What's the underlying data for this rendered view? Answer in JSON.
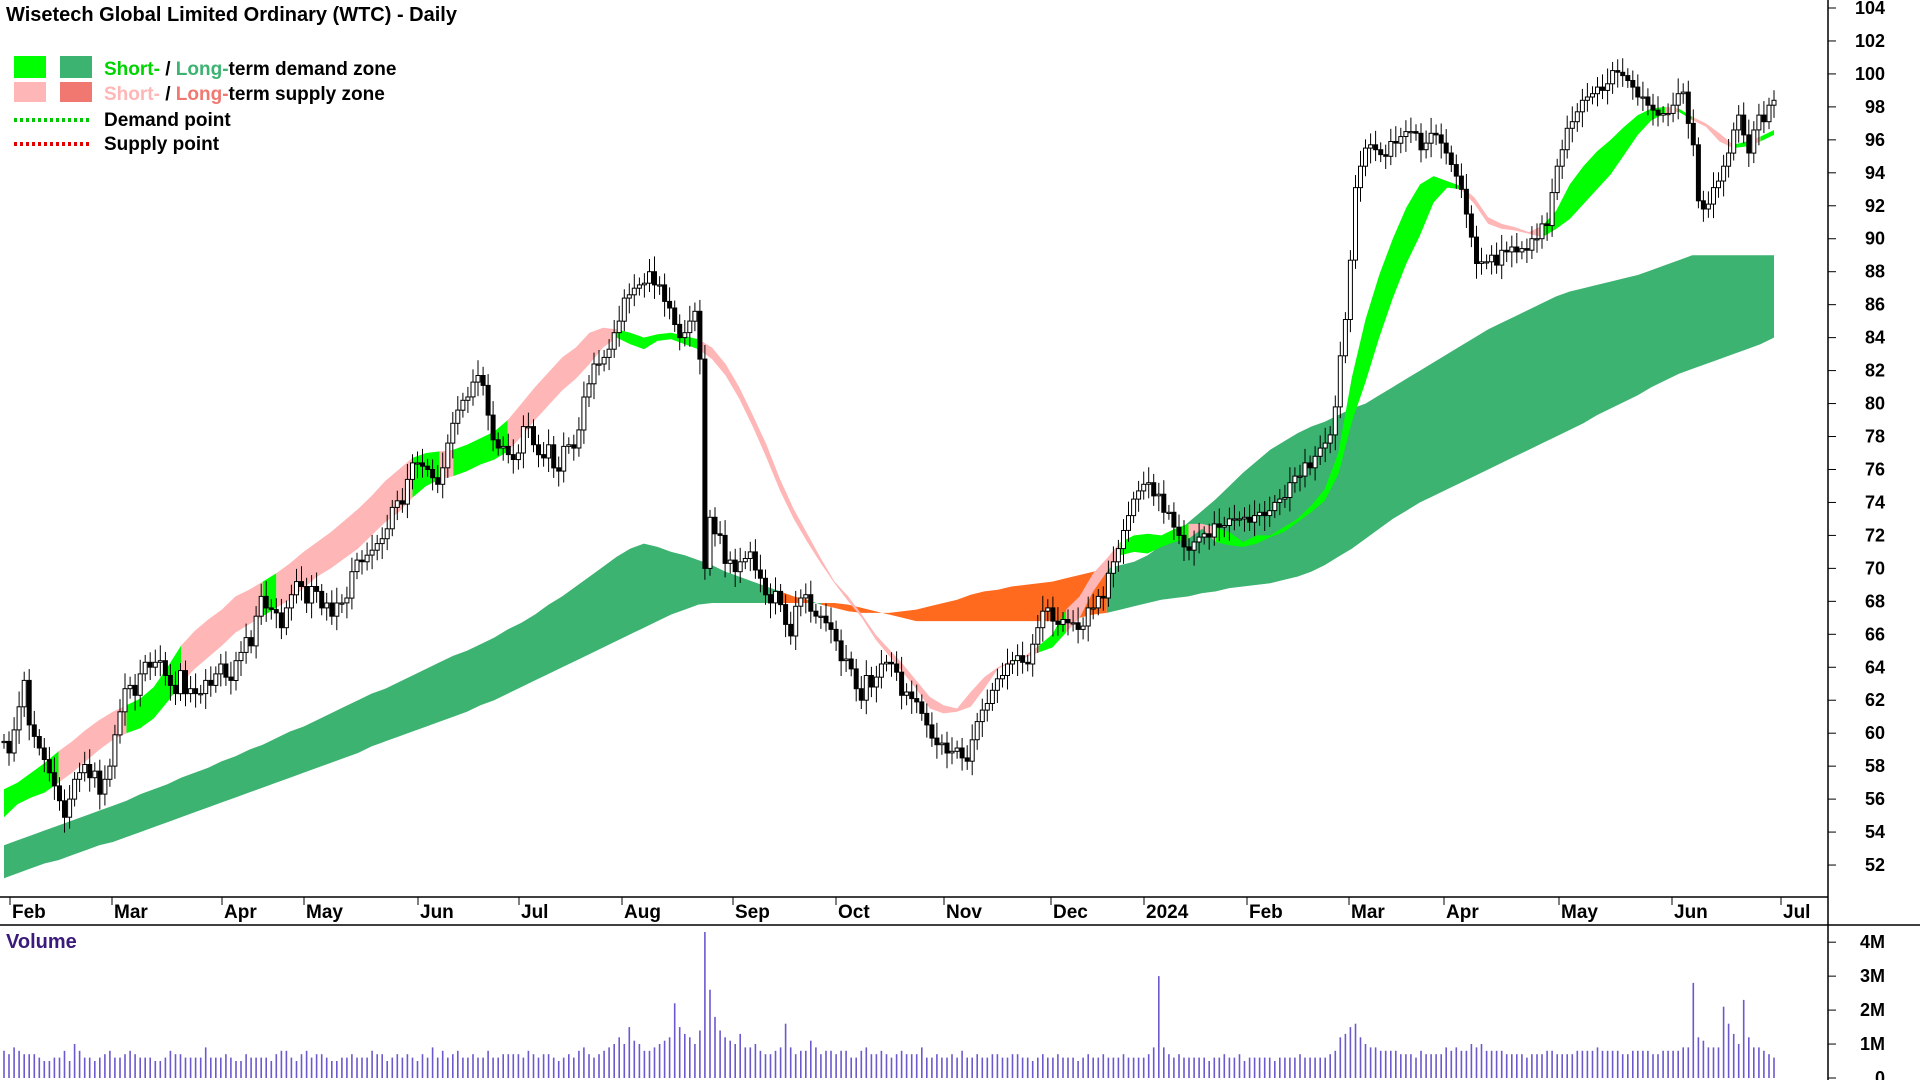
{
  "chart_data": {
    "type": "candlestick",
    "title": "Wisetech Global Limited Ordinary (WTC) - Daily",
    "legend": {
      "demand_zone": {
        "short": "Short-",
        "sep": " / ",
        "long": "Long-",
        "rest": "term demand zone"
      },
      "supply_zone": {
        "short": "Short-",
        "sep": " / ",
        "long": "Long-",
        "rest": "term supply zone"
      },
      "demand_point": "Demand point",
      "supply_point": "Supply point"
    },
    "colors": {
      "short_demand": "#00ff00",
      "long_demand": "#3cb371",
      "short_supply": "#ffb6b6",
      "long_supply": "#f07870",
      "band_supply": "#ff6a1e",
      "demand_point": "#00c800",
      "supply_point": "#e00000",
      "volume": "#6a5acd",
      "candle": "#000000"
    },
    "y_axis": {
      "ylim": [
        50,
        104
      ],
      "ticks": [
        52,
        54,
        56,
        58,
        60,
        62,
        64,
        66,
        68,
        70,
        72,
        74,
        76,
        78,
        80,
        82,
        84,
        86,
        88,
        90,
        92,
        94,
        96,
        98,
        100,
        102,
        104
      ]
    },
    "x_axis": {
      "labels": [
        "Feb",
        "Mar",
        "Apr",
        "May",
        "Jun",
        "Jul",
        "Aug",
        "Sep",
        "Oct",
        "Nov",
        "Dec",
        "2024",
        "Feb",
        "Mar",
        "Apr",
        "May",
        "Jun",
        "Jul"
      ]
    },
    "close": [
      59.5,
      58.8,
      60.2,
      61.6,
      63.2,
      60.5,
      59.8,
      59.1,
      58.4,
      57.6,
      56.8,
      55.9,
      54.9,
      56.0,
      57.2,
      57.6,
      58.1,
      57.3,
      57.7,
      56.3,
      57.2,
      58.0,
      59.9,
      61.3,
      62.7,
      62.9,
      62.3,
      63.6,
      64.3,
      64.0,
      64.3,
      64.4,
      63.5,
      62.9,
      62.4,
      63.8,
      62.4,
      62.7,
      62.4,
      62.4,
      63.2,
      62.9,
      63.6,
      64.2,
      63.4,
      63.2,
      64.4,
      64.9,
      65.8,
      65.3,
      67.1,
      68.3,
      67.6,
      67.5,
      67.3,
      66.4,
      67.6,
      68.4,
      69.2,
      68.9,
      67.9,
      68.9,
      68.6,
      67.6,
      67.9,
      67.1,
      67.9,
      67.9,
      68.2,
      69.8,
      70.5,
      70.4,
      70.8,
      71.1,
      71.5,
      71.8,
      72.4,
      73.7,
      74.1,
      73.9,
      75.4,
      76.4,
      76.4,
      76.2,
      76.0,
      75.5,
      75.1,
      76.1,
      77.6,
      78.8,
      79.6,
      80.2,
      80.4,
      81.3,
      81.7,
      81.1,
      79.3,
      77.8,
      77.3,
      77.4,
      76.9,
      76.6,
      77.0,
      78.6,
      78.6,
      77.5,
      76.9,
      76.7,
      77.5,
      76.1,
      75.9,
      77.4,
      77.5,
      77.3,
      78.4,
      80.4,
      81.2,
      82.4,
      82.4,
      82.8,
      83.3,
      84.3,
      85.0,
      86.4,
      86.6,
      87.0,
      87.2,
      87.3,
      88.0,
      87.2,
      87.2,
      86.2,
      85.8,
      84.8,
      84.0,
      84.3,
      85.0,
      85.6,
      82.7,
      70.0,
      73.1,
      72.1,
      72.0,
      70.3,
      70.5,
      69.8,
      70.4,
      70.6,
      71.0,
      69.9,
      69.4,
      68.4,
      67.9,
      68.6,
      67.8,
      66.6,
      65.9,
      67.7,
      68.2,
      68.4,
      67.4,
      67.1,
      67.1,
      66.7,
      66.3,
      65.6,
      64.4,
      64.5,
      63.9,
      62.7,
      62.0,
      63.5,
      62.8,
      63.4,
      64.2,
      64.3,
      64.2,
      63.7,
      62.3,
      62.5,
      62.1,
      61.9,
      61.2,
      60.5,
      59.7,
      59.3,
      59.4,
      58.8,
      58.9,
      59.1,
      58.5,
      58.3,
      59.6,
      60.7,
      61.4,
      61.8,
      62.6,
      63.3,
      63.5,
      64.2,
      64.4,
      64.7,
      64.3,
      64.2,
      65.4,
      66.4,
      67.4,
      67.6,
      66.8,
      66.6,
      66.9,
      66.7,
      66.7,
      66.3,
      66.5,
      67.6,
      67.6,
      68.3,
      68.2,
      69.7,
      70.4,
      71.2,
      72.3,
      73.2,
      74.2,
      74.7,
      75.1,
      75.2,
      74.4,
      74.5,
      73.4,
      73.4,
      72.5,
      72.0,
      71.3,
      71.1,
      71.6,
      71.9,
      72.1,
      71.9,
      72.7,
      72.5,
      72.6,
      73.0,
      73.0,
      73.0,
      73.1,
      72.8,
      73.2,
      73.4,
      73.2,
      73.5,
      74.0,
      74.2,
      74.3,
      75.2,
      75.6,
      75.6,
      76.4,
      76.1,
      76.8,
      77.3,
      77.6,
      78.1,
      79.8,
      82.9,
      85.1,
      88.7,
      93.1,
      94.4,
      95.5,
      95.7,
      95.4,
      95.1,
      95.0,
      95.9,
      95.8,
      96.2,
      96.5,
      96.5,
      96.4,
      95.4,
      95.8,
      96.4,
      96.3,
      95.8,
      95.2,
      94.5,
      93.8,
      93.0,
      91.5,
      90.1,
      88.5,
      88.6,
      88.6,
      89.0,
      88.4,
      89.3,
      89.2,
      89.5,
      89.2,
      89.4,
      89.3,
      90.0,
      90.0,
      90.9,
      90.8,
      92.8,
      94.4,
      95.4,
      96.7,
      97.1,
      97.7,
      98.4,
      98.6,
      98.8,
      99.2,
      99.0,
      99.4,
      100.2,
      100.1,
      99.9,
      99.6,
      99.2,
      98.6,
      98.6,
      98.1,
      97.8,
      97.5,
      97.6,
      97.6,
      98.1,
      98.8,
      98.9,
      97.0,
      95.7,
      92.3,
      91.8,
      92.1,
      93.1,
      93.5,
      94.4,
      95.2,
      96.6,
      97.5,
      96.3,
      95.2,
      96.6,
      97.5,
      97.1,
      98.1,
      98.4
    ],
    "zones": {
      "short_top": [
        56.6,
        57.0,
        57.6,
        58.2,
        58.9,
        59.5,
        60.2,
        60.8,
        61.3,
        61.7,
        62.1,
        62.8,
        64.0,
        65.3,
        66.2,
        66.9,
        67.5,
        68.3,
        68.7,
        69.2,
        69.7,
        70.3,
        71.0,
        71.6,
        72.2,
        72.9,
        73.6,
        74.4,
        75.3,
        76.0,
        76.7,
        77.0,
        77.1,
        77.2,
        77.5,
        77.9,
        78.3,
        79.0,
        80.0,
        81.0,
        81.9,
        82.8,
        83.4,
        84.3,
        84.6,
        84.5,
        84.3,
        84.0,
        84.2,
        84.3,
        84.1,
        83.9,
        83.4,
        82.4,
        81.0,
        79.3,
        77.5,
        75.4,
        73.6,
        72.1,
        70.6,
        69.2,
        68.3,
        67.2,
        66.0,
        65.1,
        64.2,
        63.2,
        62.2,
        61.7,
        61.5,
        62.5,
        63.4,
        64.0,
        64.4,
        64.7,
        65.3,
        66.0,
        67.5,
        68.3,
        69.7,
        70.6,
        71.6,
        72.0,
        72.1,
        72.0,
        72.4,
        72.7,
        72.7,
        72.5,
        72.2,
        71.6,
        72.0,
        72.0,
        72.5,
        73.0,
        73.8,
        74.8,
        77.0,
        81.6,
        85.1,
        87.8,
        90.0,
        91.9,
        93.3,
        93.8,
        93.5,
        93.2,
        92.5,
        91.3,
        90.9,
        90.7,
        90.4,
        90.8,
        91.7,
        93.3,
        94.4,
        95.3,
        96.0,
        96.8,
        97.5,
        97.9,
        98.0,
        97.9,
        97.4,
        97.0,
        96.4,
        95.7,
        95.9,
        96.2,
        96.6
      ],
      "short_bot": [
        54.9,
        55.7,
        56.1,
        56.4,
        57.0,
        57.6,
        58.3,
        59.0,
        59.6,
        60.0,
        60.3,
        60.9,
        61.9,
        63.0,
        63.9,
        64.6,
        65.3,
        66.1,
        66.6,
        67.1,
        67.6,
        68.1,
        68.8,
        69.5,
        70.0,
        70.6,
        71.2,
        72.0,
        72.8,
        73.4,
        74.3,
        75.0,
        75.4,
        75.6,
        75.9,
        76.3,
        76.6,
        77.1,
        78.0,
        79.0,
        79.9,
        80.8,
        81.5,
        82.4,
        83.4,
        84.0,
        83.6,
        83.3,
        83.8,
        83.9,
        83.6,
        83.3,
        82.7,
        81.7,
        80.3,
        78.6,
        76.7,
        74.7,
        73.0,
        71.6,
        70.3,
        69.1,
        68.0,
        67.0,
        65.7,
        64.7,
        63.7,
        62.7,
        61.5,
        61.2,
        61.3,
        61.6,
        62.7,
        63.9,
        64.3,
        64.6,
        64.9,
        65.2,
        66.1,
        67.0,
        68.6,
        69.8,
        70.8,
        71.0,
        70.9,
        71.3,
        71.6,
        71.8,
        72.4,
        71.6,
        71.4,
        71.3,
        71.5,
        71.9,
        72.2,
        72.8,
        73.4,
        74.1,
        75.7,
        78.9,
        81.3,
        84.0,
        86.4,
        88.5,
        90.2,
        92.2,
        93.1,
        93.0,
        92.1,
        90.9,
        90.6,
        90.5,
        90.3,
        90.1,
        90.6,
        91.2,
        92.1,
        93.0,
        93.9,
        95.1,
        96.3,
        97.2,
        97.6,
        97.7,
        97.2,
        96.8,
        95.9,
        95.5,
        95.6,
        95.9,
        96.3
      ],
      "long_top": [
        53.2,
        53.5,
        53.8,
        54.1,
        54.4,
        54.7,
        55.0,
        55.3,
        55.6,
        55.9,
        56.3,
        56.6,
        56.9,
        57.3,
        57.6,
        57.9,
        58.3,
        58.6,
        59.0,
        59.3,
        59.7,
        60.1,
        60.4,
        60.8,
        61.2,
        61.6,
        62.0,
        62.4,
        62.7,
        63.1,
        63.5,
        63.9,
        64.3,
        64.7,
        65.0,
        65.4,
        65.8,
        66.3,
        66.7,
        67.2,
        67.8,
        68.3,
        68.9,
        69.5,
        70.1,
        70.7,
        71.2,
        71.5,
        71.3,
        71.0,
        70.8,
        70.5,
        70.2,
        69.8,
        69.5,
        69.2,
        68.9,
        68.6,
        68.3,
        68.1,
        67.8,
        67.6,
        67.4,
        67.3,
        67.3,
        67.3,
        67.4,
        67.5,
        67.7,
        67.9,
        68.1,
        68.4,
        68.6,
        68.7,
        68.9,
        69.0,
        69.1,
        69.2,
        69.4,
        69.6,
        69.8,
        70.0,
        70.2,
        70.4,
        70.8,
        71.4,
        72.1,
        72.8,
        73.5,
        74.2,
        75.0,
        75.8,
        76.5,
        77.2,
        77.7,
        78.2,
        78.6,
        78.9,
        79.3,
        79.7,
        80.0,
        80.5,
        81.0,
        81.5,
        82.0,
        82.5,
        83.0,
        83.5,
        84.0,
        84.5,
        84.9,
        85.3,
        85.7,
        86.1,
        86.5,
        86.8,
        87.0,
        87.2,
        87.4,
        87.6,
        87.8,
        88.1,
        88.4,
        88.7,
        89.0,
        89.0,
        89.0,
        89.0,
        89.0,
        89.0,
        89.0
      ],
      "long_bot": [
        51.2,
        51.5,
        51.8,
        52.1,
        52.3,
        52.6,
        52.9,
        53.2,
        53.4,
        53.7,
        54.0,
        54.3,
        54.6,
        54.9,
        55.2,
        55.5,
        55.8,
        56.1,
        56.4,
        56.7,
        57.0,
        57.3,
        57.6,
        57.9,
        58.2,
        58.5,
        58.8,
        59.2,
        59.5,
        59.8,
        60.1,
        60.4,
        60.7,
        61.0,
        61.3,
        61.7,
        62.0,
        62.4,
        62.8,
        63.2,
        63.6,
        64.0,
        64.4,
        64.8,
        65.2,
        65.6,
        66.0,
        66.4,
        66.8,
        67.2,
        67.5,
        67.8,
        67.9,
        67.9,
        67.9,
        67.9,
        67.9,
        67.9,
        67.9,
        67.9,
        67.9,
        67.9,
        67.8,
        67.6,
        67.4,
        67.2,
        67.0,
        66.8,
        66.8,
        66.8,
        66.8,
        66.8,
        66.8,
        66.8,
        66.8,
        66.8,
        66.8,
        66.8,
        66.9,
        67.0,
        67.2,
        67.3,
        67.5,
        67.7,
        67.9,
        68.1,
        68.2,
        68.3,
        68.5,
        68.6,
        68.8,
        68.9,
        69.0,
        69.1,
        69.3,
        69.5,
        69.8,
        70.2,
        70.7,
        71.2,
        71.8,
        72.4,
        73.0,
        73.5,
        74.0,
        74.4,
        74.8,
        75.2,
        75.6,
        76.0,
        76.4,
        76.8,
        77.2,
        77.6,
        78.0,
        78.4,
        78.8,
        79.3,
        79.7,
        80.1,
        80.5,
        81.0,
        81.4,
        81.8,
        82.1,
        82.4,
        82.7,
        83.0,
        83.3,
        83.6,
        84.0
      ]
    },
    "volume_title": "Volume",
    "volume_axis": {
      "labels": [
        "4M",
        "3M",
        "2M",
        "1M",
        "0"
      ],
      "max": 4.3
    },
    "volume": [
      0.8,
      0.7,
      0.9,
      0.8,
      0.7,
      0.7,
      0.7,
      0.6,
      0.5,
      0.5,
      0.6,
      0.6,
      0.8,
      0.5,
      1.0,
      0.8,
      0.6,
      0.6,
      0.5,
      0.6,
      0.7,
      0.8,
      0.6,
      0.6,
      0.7,
      0.8,
      0.7,
      0.6,
      0.6,
      0.6,
      0.5,
      0.5,
      0.6,
      0.8,
      0.7,
      0.7,
      0.6,
      0.6,
      0.6,
      0.6,
      0.9,
      0.6,
      0.6,
      0.6,
      0.7,
      0.6,
      0.5,
      0.5,
      0.7,
      0.6,
      0.6,
      0.6,
      0.6,
      0.5,
      0.7,
      0.8,
      0.8,
      0.6,
      0.5,
      0.7,
      0.8,
      0.6,
      0.7,
      0.7,
      0.6,
      0.5,
      0.5,
      0.6,
      0.6,
      0.7,
      0.6,
      0.6,
      0.6,
      0.8,
      0.7,
      0.7,
      0.5,
      0.6,
      0.7,
      0.6,
      0.7,
      0.6,
      0.5,
      0.7,
      0.6,
      0.9,
      0.6,
      0.8,
      0.6,
      0.7,
      0.8,
      0.6,
      0.6,
      0.7,
      0.6,
      0.6,
      0.8,
      0.6,
      0.6,
      0.7,
      0.7,
      0.7,
      0.7,
      0.6,
      0.8,
      0.7,
      0.6,
      0.7,
      0.7,
      0.6,
      0.5,
      0.6,
      0.7,
      0.6,
      0.8,
      0.9,
      0.7,
      0.6,
      0.7,
      0.8,
      0.9,
      1.0,
      1.2,
      1.0,
      1.5,
      1.1,
      1.0,
      0.8,
      0.8,
      0.9,
      1.0,
      1.1,
      1.2,
      2.2,
      1.5,
      1.3,
      1.2,
      1.0,
      1.4,
      4.3,
      2.6,
      1.8,
      1.4,
      1.2,
      1.1,
      1.0,
      1.3,
      0.9,
      0.9,
      1.0,
      0.8,
      0.7,
      0.7,
      0.8,
      0.9,
      1.6,
      0.9,
      0.7,
      0.8,
      0.8,
      1.1,
      0.9,
      0.7,
      0.8,
      0.8,
      0.7,
      0.8,
      0.8,
      0.6,
      0.6,
      0.8,
      0.9,
      0.7,
      0.7,
      0.8,
      0.7,
      0.6,
      0.7,
      0.8,
      0.7,
      0.7,
      0.7,
      0.9,
      0.6,
      0.6,
      0.7,
      0.6,
      0.6,
      0.7,
      0.6,
      0.8,
      0.6,
      0.6,
      0.7,
      0.6,
      0.6,
      0.7,
      0.7,
      0.6,
      0.6,
      0.7,
      0.7,
      0.6,
      0.6,
      0.5,
      0.6,
      0.7,
      0.6,
      0.6,
      0.7,
      0.6,
      0.6,
      0.6,
      0.5,
      0.6,
      0.7,
      0.6,
      0.6,
      0.7,
      0.6,
      0.6,
      0.6,
      0.7,
      0.6,
      0.6,
      0.6,
      0.6,
      0.7,
      0.9,
      3.0,
      0.9,
      0.7,
      0.6,
      0.7,
      0.6,
      0.6,
      0.6,
      0.6,
      0.6,
      0.5,
      0.6,
      0.6,
      0.7,
      0.6,
      0.6,
      0.7,
      0.5,
      0.6,
      0.6,
      0.6,
      0.6,
      0.6,
      0.5,
      0.6,
      0.6,
      0.6,
      0.6,
      0.7,
      0.6,
      0.6,
      0.6,
      0.6,
      0.6,
      0.7,
      0.8,
      1.2,
      1.3,
      1.5,
      1.6,
      1.2,
      1.0,
      0.9,
      0.9,
      0.8,
      0.8,
      0.8,
      0.8,
      0.7,
      0.7,
      0.7,
      0.6,
      0.8,
      0.7,
      0.7,
      0.7,
      0.7,
      0.9,
      0.8,
      0.9,
      0.8,
      0.8,
      1.0,
      0.9,
      1.0,
      0.8,
      0.8,
      0.8,
      0.8,
      0.7,
      0.7,
      0.7,
      0.7,
      0.6,
      0.7,
      0.7,
      0.7,
      0.8,
      0.8,
      0.7,
      0.7,
      0.7,
      0.7,
      0.8,
      0.8,
      0.8,
      0.8,
      0.9,
      0.8,
      0.8,
      0.8,
      0.8,
      0.7,
      0.7,
      0.8,
      0.8,
      0.8,
      0.8,
      0.7,
      0.7,
      0.8,
      0.8,
      0.8,
      0.8,
      0.9,
      0.9,
      2.8,
      1.2,
      1.1,
      0.9,
      0.9,
      0.9,
      2.1,
      1.6,
      1.3,
      1.0,
      2.3,
      1.2,
      0.9,
      0.9,
      0.8,
      0.7,
      0.6
    ]
  }
}
